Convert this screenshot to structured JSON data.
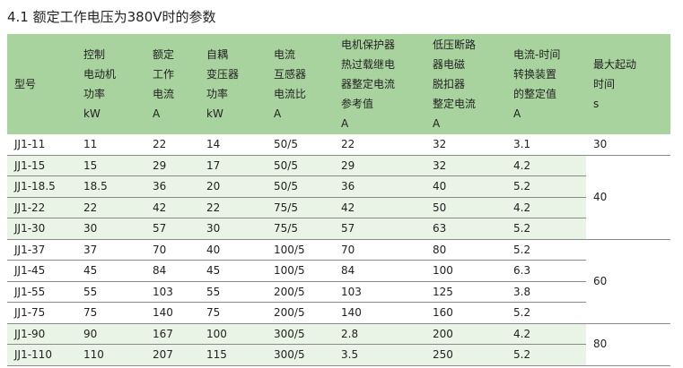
{
  "title": "4.1 额定工作电压为380V时的参数",
  "table": {
    "headers": [
      [
        "型号"
      ],
      [
        "控制",
        "电动机",
        "功率",
        "kW"
      ],
      [
        "额定",
        "工作",
        "电流",
        "A"
      ],
      [
        "自耦",
        "变压器",
        "功率",
        "kW"
      ],
      [
        "电流",
        "互感器",
        "电流比",
        "A"
      ],
      [
        "电机保护器",
        "热过载继电",
        "器整定电流",
        "参考值",
        "A"
      ],
      [
        "低压断路",
        "器电磁",
        "脱扣器",
        "整定电流",
        "A"
      ],
      [
        "电流-时间",
        "转换装置",
        "的整定值",
        "A"
      ],
      [
        "最大起动",
        "时间",
        "s"
      ]
    ],
    "rows": [
      [
        "JJ1-11",
        "11",
        "22",
        "14",
        "50/5",
        "22",
        "32",
        "3.1"
      ],
      [
        "JJ1-15",
        "15",
        "29",
        "17",
        "50/5",
        "29",
        "32",
        "4.2"
      ],
      [
        "JJ1-18.5",
        "18.5",
        "36",
        "20",
        "50/5",
        "36",
        "40",
        "5.2"
      ],
      [
        "JJ1-22",
        "22",
        "42",
        "22",
        "75/5",
        "42",
        "50",
        "4.2"
      ],
      [
        "JJ1-30",
        "30",
        "57",
        "30",
        "75/5",
        "57",
        "63",
        "5.2"
      ],
      [
        "JJ1-37",
        "37",
        "70",
        "40",
        "100/5",
        "70",
        "80",
        "5.2"
      ],
      [
        "JJ1-45",
        "45",
        "84",
        "45",
        "100/5",
        "84",
        "100",
        "6.3"
      ],
      [
        "JJ1-55",
        "55",
        "103",
        "55",
        "200/5",
        "103",
        "125",
        "3.8"
      ],
      [
        "JJ1-75",
        "75",
        "140",
        "75",
        "200/5",
        "140",
        "160",
        "5.2"
      ],
      [
        "JJ1-90",
        "90",
        "167",
        "100",
        "300/5",
        "2.8",
        "200",
        "4.2"
      ],
      [
        "JJ1-110",
        "110",
        "207",
        "115",
        "300/5",
        "3.5",
        "250",
        "5.2"
      ]
    ],
    "start_time_groups": [
      {
        "value": "30",
        "rows": 1
      },
      {
        "value": "40",
        "rows": 4
      },
      {
        "value": "60",
        "rows": 4
      },
      {
        "value": "80",
        "rows": 2
      }
    ],
    "shaded_rows": [
      1,
      2,
      3,
      4,
      9,
      10
    ]
  },
  "colors": {
    "header_bg": "#a9d39e",
    "row_shade": "#e9f3e6",
    "rule": "#8a8a8a"
  }
}
